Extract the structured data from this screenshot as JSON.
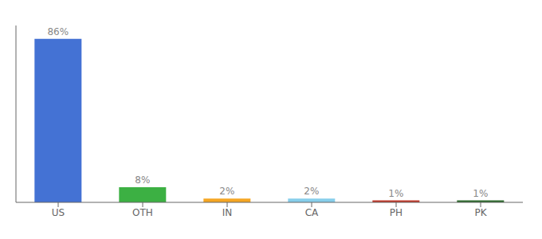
{
  "chart_data": {
    "type": "bar",
    "categories": [
      "US",
      "OTH",
      "IN",
      "CA",
      "PH",
      "PK"
    ],
    "values": [
      86,
      8,
      2,
      2,
      1,
      1
    ],
    "value_labels": [
      "86%",
      "8%",
      "2%",
      "2%",
      "1%",
      "1%"
    ],
    "colors": [
      "#4472d4",
      "#3cb043",
      "#f5a623",
      "#87ceeb",
      "#c0392b",
      "#2d6a2d"
    ],
    "data_labels": true,
    "ylim": [
      0,
      93
    ],
    "tick_labels": "x"
  }
}
